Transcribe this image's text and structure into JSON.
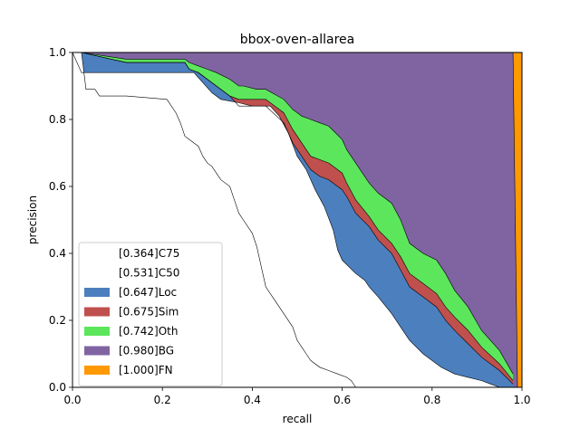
{
  "chart_data": {
    "type": "area",
    "title": "bbox-oven-allarea",
    "xlabel": "recall",
    "ylabel": "precision",
    "xlim": [
      0,
      1
    ],
    "ylim": [
      0,
      1
    ],
    "xticks": [
      "0.0",
      "0.2",
      "0.4",
      "0.6",
      "0.8",
      "1.0"
    ],
    "yticks": [
      "0.0",
      "0.2",
      "0.4",
      "0.6",
      "0.8",
      "1.0"
    ],
    "grid": false,
    "legend_position": "lower-left",
    "series": [
      {
        "name": "[0.364]C75",
        "color": "#ffffff",
        "x": [
          0.0,
          0.02,
          0.03,
          0.05,
          0.06,
          0.12,
          0.21,
          0.23,
          0.24,
          0.25,
          0.26,
          0.28,
          0.29,
          0.3,
          0.31,
          0.32,
          0.33,
          0.35,
          0.36,
          0.37,
          0.38,
          0.4,
          0.41,
          0.42,
          0.43,
          0.45,
          0.47,
          0.49,
          0.5,
          0.51,
          0.52,
          0.53,
          0.55,
          0.57,
          0.59,
          0.61,
          0.62,
          0.63
        ],
        "y": [
          1.0,
          1.0,
          0.89,
          0.89,
          0.87,
          0.87,
          0.86,
          0.82,
          0.79,
          0.75,
          0.74,
          0.72,
          0.69,
          0.67,
          0.66,
          0.64,
          0.62,
          0.6,
          0.56,
          0.52,
          0.5,
          0.46,
          0.42,
          0.36,
          0.3,
          0.26,
          0.22,
          0.18,
          0.14,
          0.12,
          0.1,
          0.08,
          0.06,
          0.05,
          0.04,
          0.03,
          0.02,
          0.0
        ]
      },
      {
        "name": "[0.531]C50",
        "color": "#ffffff",
        "x": [
          0.0,
          0.02,
          0.27,
          0.29,
          0.31,
          0.33,
          0.37,
          0.4,
          0.44,
          0.46,
          0.48,
          0.5,
          0.52,
          0.54,
          0.56,
          0.58,
          0.59,
          0.6,
          0.63,
          0.65,
          0.66,
          0.68,
          0.71,
          0.73,
          0.75,
          0.78,
          0.8,
          0.82,
          0.85,
          0.88,
          0.91,
          0.93,
          0.95,
          0.96,
          0.98
        ],
        "y": [
          1.0,
          0.94,
          0.94,
          0.91,
          0.88,
          0.86,
          0.85,
          0.84,
          0.84,
          0.81,
          0.76,
          0.69,
          0.65,
          0.59,
          0.54,
          0.47,
          0.41,
          0.38,
          0.34,
          0.32,
          0.3,
          0.27,
          0.22,
          0.18,
          0.14,
          0.1,
          0.08,
          0.06,
          0.04,
          0.03,
          0.02,
          0.01,
          0.0,
          0.0,
          0.0
        ]
      },
      {
        "name": "[0.647]Loc",
        "color": "#4c7fbe",
        "x": [
          0.0,
          0.02,
          0.12,
          0.25,
          0.26,
          0.28,
          0.3,
          0.32,
          0.35,
          0.37,
          0.38,
          0.41,
          0.43,
          0.47,
          0.49,
          0.51,
          0.53,
          0.55,
          0.57,
          0.6,
          0.61,
          0.63,
          0.66,
          0.68,
          0.71,
          0.73,
          0.75,
          0.78,
          0.81,
          0.83,
          0.85,
          0.88,
          0.91,
          0.95,
          0.98
        ],
        "y": [
          1.0,
          1.0,
          0.97,
          0.97,
          0.95,
          0.94,
          0.92,
          0.9,
          0.87,
          0.84,
          0.84,
          0.84,
          0.84,
          0.79,
          0.73,
          0.69,
          0.65,
          0.63,
          0.62,
          0.59,
          0.57,
          0.52,
          0.48,
          0.44,
          0.4,
          0.35,
          0.3,
          0.27,
          0.24,
          0.2,
          0.17,
          0.13,
          0.09,
          0.05,
          0.01
        ]
      },
      {
        "name": "[0.675]Sim",
        "color": "#c0504d",
        "x": [
          0.0,
          0.02,
          0.12,
          0.25,
          0.26,
          0.28,
          0.3,
          0.32,
          0.35,
          0.37,
          0.38,
          0.41,
          0.43,
          0.47,
          0.49,
          0.51,
          0.53,
          0.55,
          0.57,
          0.6,
          0.61,
          0.63,
          0.66,
          0.68,
          0.71,
          0.73,
          0.75,
          0.78,
          0.81,
          0.83,
          0.85,
          0.88,
          0.91,
          0.95,
          0.98
        ],
        "y": [
          1.0,
          1.0,
          0.97,
          0.97,
          0.95,
          0.94,
          0.92,
          0.9,
          0.87,
          0.86,
          0.86,
          0.86,
          0.86,
          0.82,
          0.77,
          0.73,
          0.69,
          0.68,
          0.67,
          0.64,
          0.61,
          0.56,
          0.51,
          0.47,
          0.43,
          0.39,
          0.34,
          0.31,
          0.28,
          0.24,
          0.21,
          0.17,
          0.12,
          0.07,
          0.02
        ]
      },
      {
        "name": "[0.742]Oth",
        "color": "#5ce65c",
        "x": [
          0.0,
          0.02,
          0.12,
          0.25,
          0.26,
          0.28,
          0.3,
          0.32,
          0.35,
          0.37,
          0.38,
          0.41,
          0.43,
          0.47,
          0.49,
          0.51,
          0.53,
          0.55,
          0.57,
          0.6,
          0.61,
          0.63,
          0.66,
          0.68,
          0.71,
          0.73,
          0.75,
          0.78,
          0.81,
          0.83,
          0.85,
          0.88,
          0.91,
          0.95,
          0.98
        ],
        "y": [
          1.0,
          1.0,
          0.98,
          0.98,
          0.97,
          0.96,
          0.95,
          0.94,
          0.92,
          0.9,
          0.9,
          0.89,
          0.89,
          0.86,
          0.83,
          0.81,
          0.8,
          0.79,
          0.78,
          0.74,
          0.71,
          0.67,
          0.61,
          0.58,
          0.55,
          0.5,
          0.43,
          0.4,
          0.38,
          0.34,
          0.29,
          0.24,
          0.17,
          0.11,
          0.04
        ]
      },
      {
        "name": "[0.980]BG",
        "color": "#8064a2",
        "x": [
          0.0,
          0.98,
          0.99
        ],
        "y": [
          1.0,
          1.0,
          0.0
        ]
      },
      {
        "name": "[1.000]FN",
        "color": "#ff9900",
        "x": [
          0.98,
          1.0
        ],
        "y": [
          1.0,
          1.0
        ]
      }
    ]
  }
}
